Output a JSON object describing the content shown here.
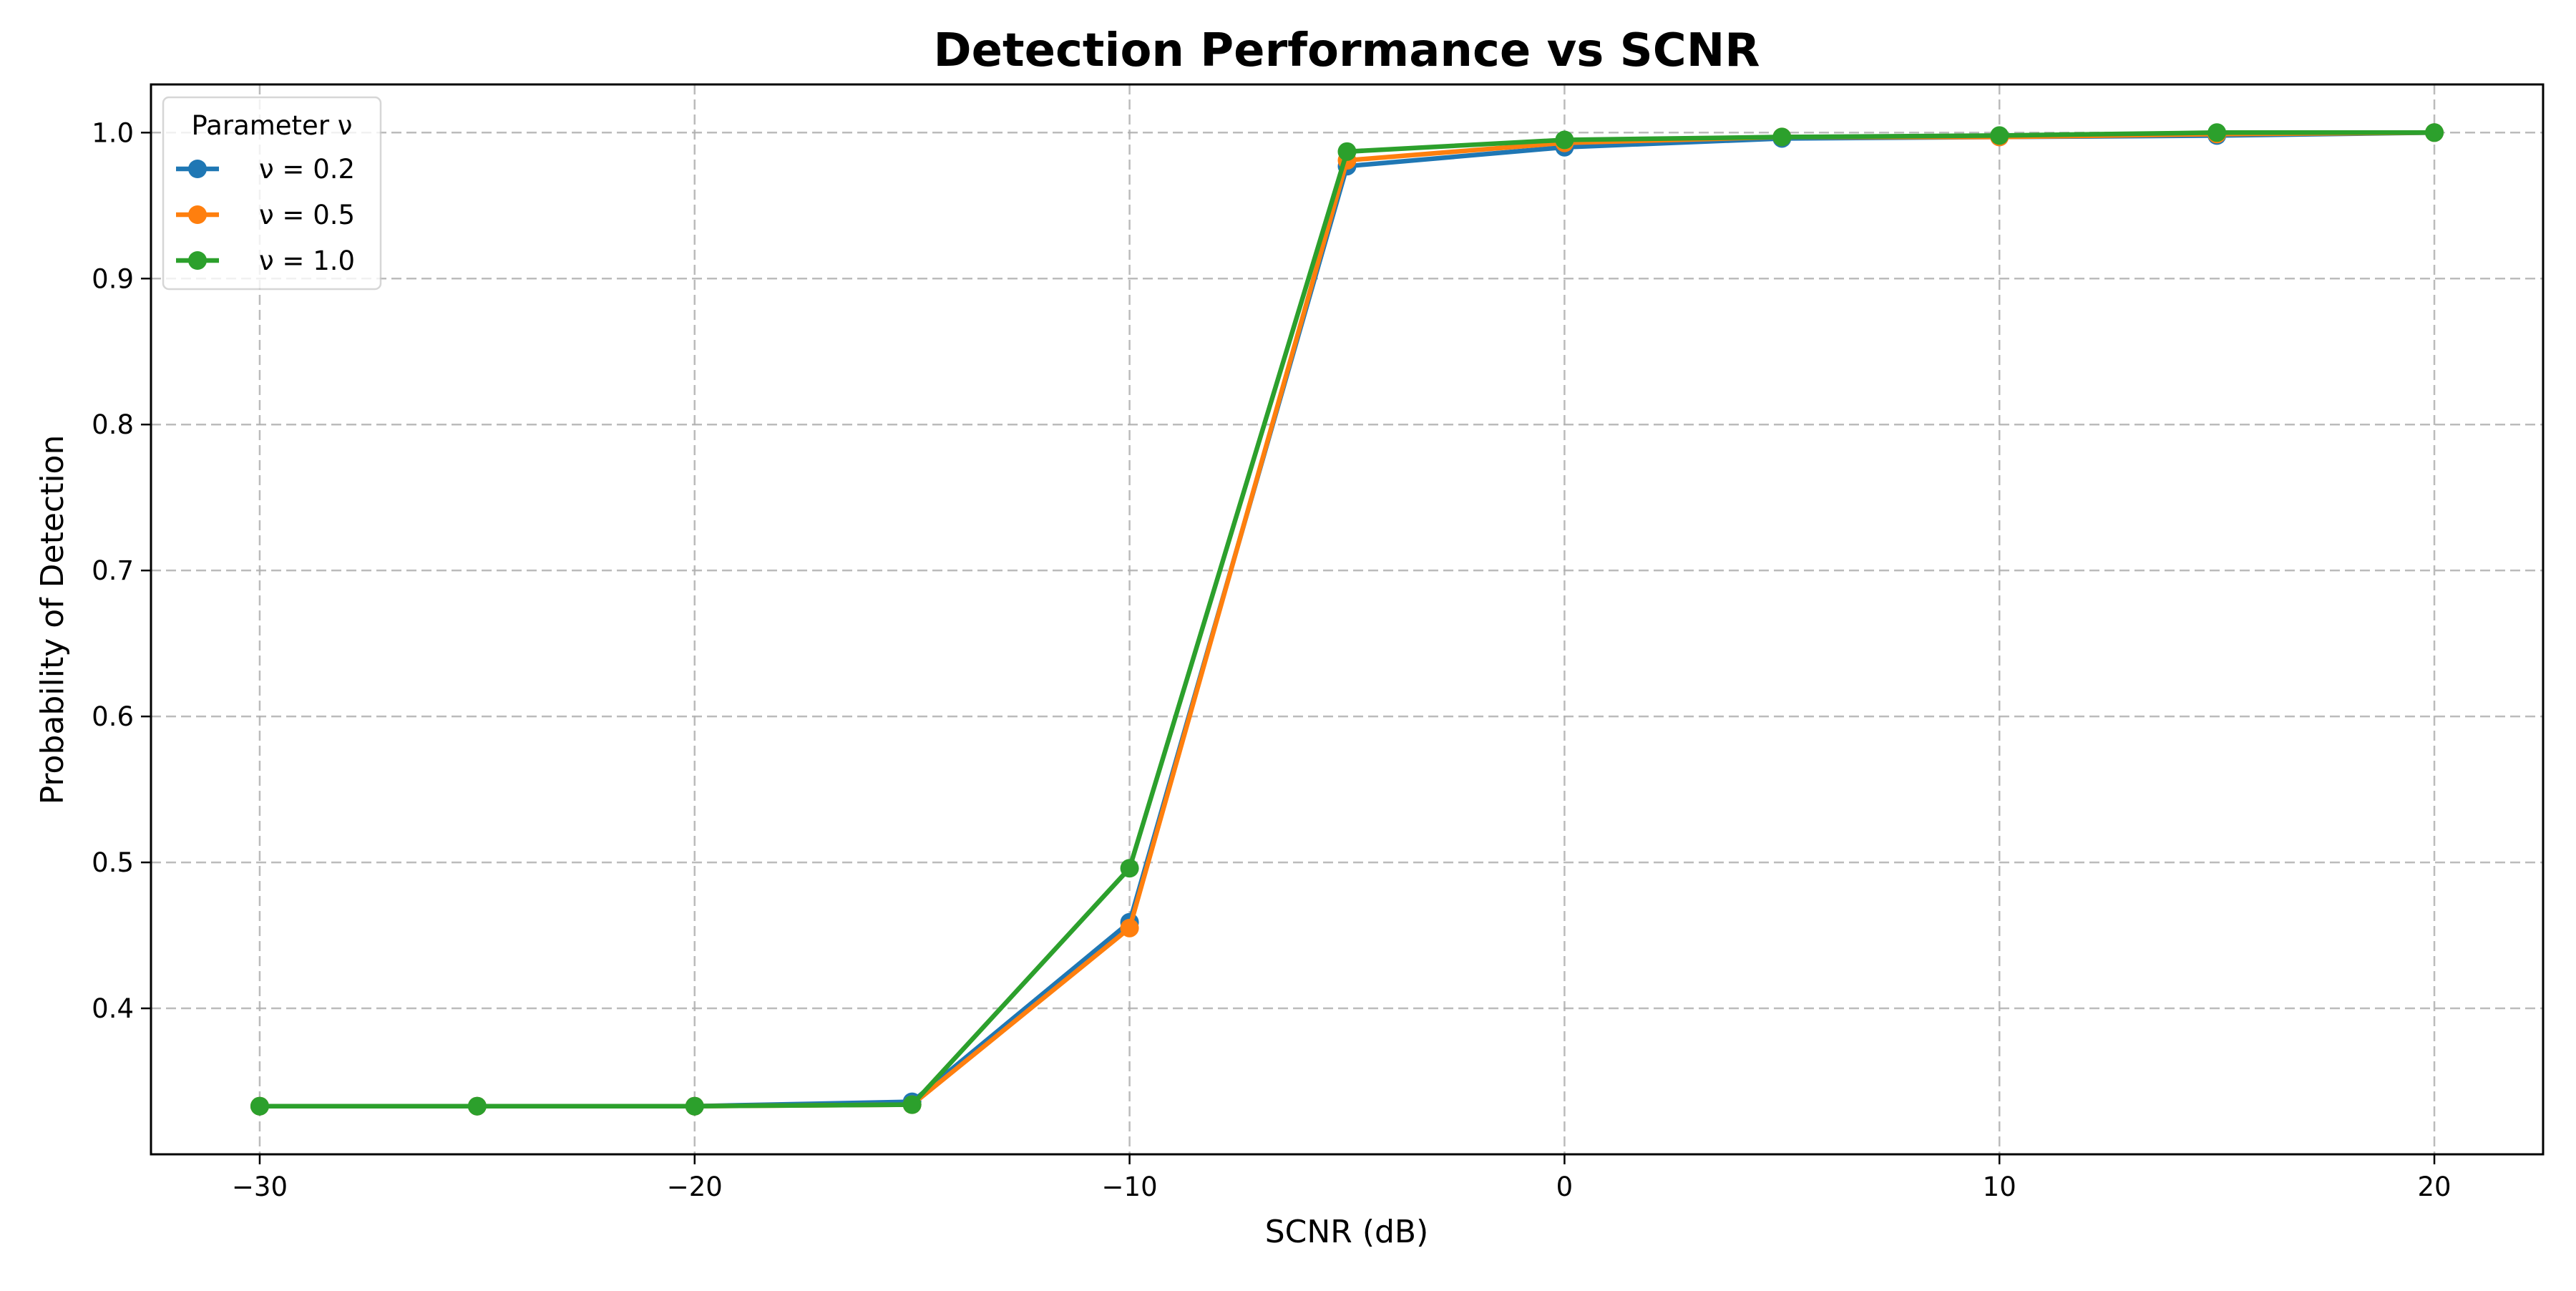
{
  "chart_data": {
    "type": "line",
    "title": "Detection Performance vs SCNR",
    "xlabel": "SCNR (dB)",
    "ylabel": "Probability of Detection",
    "xlim": [
      -32.5,
      22.5
    ],
    "ylim": [
      0.3,
      1.033
    ],
    "xticks": [
      -30,
      -20,
      -10,
      0,
      10,
      20
    ],
    "xtick_labels": [
      "−30",
      "−20",
      "−10",
      "0",
      "10",
      "20"
    ],
    "yticks": [
      0.4,
      0.5,
      0.6,
      0.7,
      0.8,
      0.9,
      1.0
    ],
    "ytick_labels": [
      "0.4",
      "0.5",
      "0.6",
      "0.7",
      "0.8",
      "0.9",
      "1.0"
    ],
    "grid": true,
    "legend": {
      "title": "Parameter ν",
      "placement": "top-left"
    },
    "x": [
      -30,
      -25,
      -20,
      -15,
      -10,
      -5,
      0,
      5,
      10,
      15,
      20
    ],
    "series": [
      {
        "name": "ν = 0.2",
        "color": "#1f77b4",
        "values": [
          0.333,
          0.333,
          0.333,
          0.336,
          0.459,
          0.977,
          0.99,
          0.996,
          0.997,
          0.998,
          1.0
        ]
      },
      {
        "name": "ν = 0.5",
        "color": "#ff7f0e",
        "values": [
          0.333,
          0.333,
          0.333,
          0.334,
          0.455,
          0.981,
          0.993,
          0.997,
          0.997,
          0.999,
          1.0
        ]
      },
      {
        "name": "ν = 1.0",
        "color": "#2ca02c",
        "values": [
          0.333,
          0.333,
          0.333,
          0.334,
          0.496,
          0.987,
          0.995,
          0.997,
          0.998,
          1.0,
          1.0
        ]
      }
    ]
  }
}
